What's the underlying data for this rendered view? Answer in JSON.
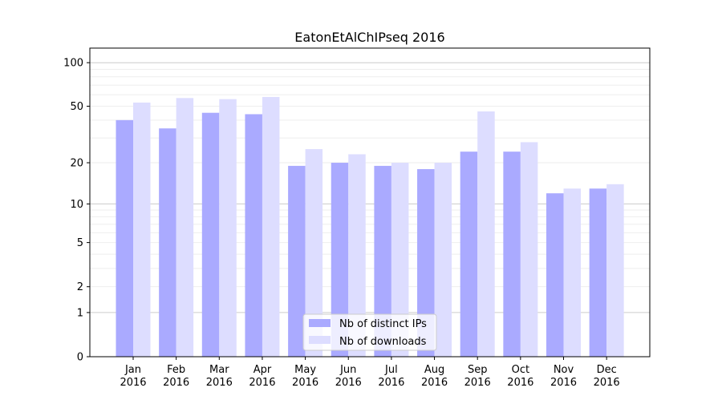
{
  "chart_data": {
    "type": "bar",
    "title": "EatonEtAlChIPseq 2016",
    "xlabel": "",
    "ylabel": "",
    "yscale": "log(1+y)",
    "ylim": [
      0,
      126
    ],
    "yticks": [
      0,
      1,
      2,
      5,
      10,
      20,
      50,
      100
    ],
    "ytick_labels": [
      "0",
      "1",
      "2",
      "5",
      "10",
      "20",
      "50",
      "100"
    ],
    "grid": true,
    "categories": [
      "Jan\n2016",
      "Feb\n2016",
      "Mar\n2016",
      "Apr\n2016",
      "May\n2016",
      "Jun\n2016",
      "Jul\n2016",
      "Aug\n2016",
      "Sep\n2016",
      "Oct\n2016",
      "Nov\n2016",
      "Dec\n2016"
    ],
    "series": [
      {
        "name": "Nb of distinct IPs",
        "color": "#aaaaff",
        "values": [
          40,
          35,
          45,
          44,
          19,
          20,
          19,
          18,
          24,
          24,
          12,
          13
        ]
      },
      {
        "name": "Nb of downloads",
        "color": "#ddddff",
        "values": [
          53,
          57,
          56,
          58,
          25,
          23,
          20,
          20,
          46,
          28,
          13,
          14
        ]
      }
    ],
    "legend": {
      "placement": "lower center"
    }
  }
}
